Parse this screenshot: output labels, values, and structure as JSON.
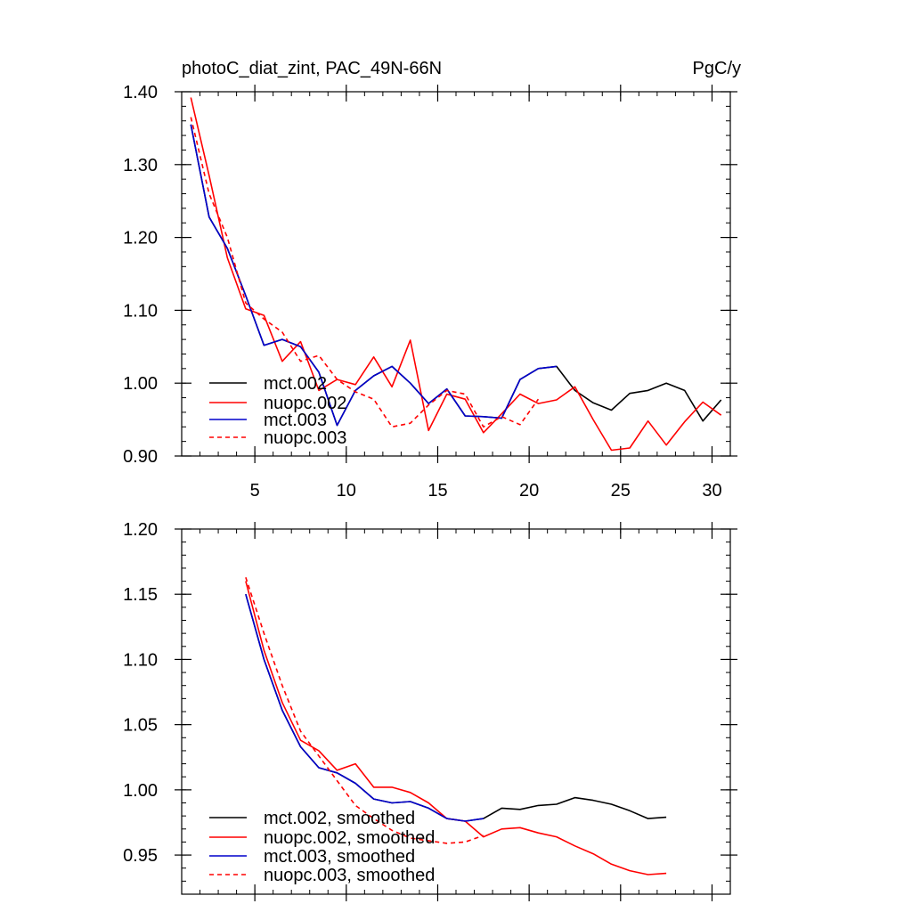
{
  "title_left": "photoC_diat_zint, PAC_49N-66N",
  "title_right": "PgC/y",
  "chart_data": [
    {
      "type": "line",
      "xlim": [
        1,
        31
      ],
      "ylim": [
        0.9,
        1.4
      ],
      "xticks": [
        5,
        10,
        15,
        20,
        25,
        30
      ],
      "xtick_labels": [
        "5",
        "10",
        "15",
        "20",
        "25",
        "30"
      ],
      "yticks": [
        0.9,
        1.0,
        1.1,
        1.2,
        1.3,
        1.4
      ],
      "ytick_labels": [
        "0.90",
        "1.00",
        "1.10",
        "1.20",
        "1.30",
        "1.40"
      ],
      "legend_position": "bottom-left",
      "series": [
        {
          "name": "mct.002",
          "color": "#000000",
          "dash": false,
          "x": [
            1.5,
            2.5,
            3.5,
            4.5,
            5.5,
            6.5,
            7.5,
            8.5,
            9.5,
            10.5,
            11.5,
            12.5,
            13.5,
            14.5,
            15.5,
            16.5,
            17.5,
            18.5,
            19.5,
            20.5,
            21.5,
            22.5,
            23.5,
            24.5,
            25.5,
            26.5,
            27.5,
            28.5,
            29.5,
            30.5
          ],
          "y": [
            1.355,
            1.228,
            1.185,
            1.12,
            1.052,
            1.06,
            1.05,
            1.015,
            0.942,
            0.99,
            1.01,
            1.023,
            1.0,
            0.972,
            0.992,
            0.955,
            0.954,
            0.952,
            1.005,
            1.02,
            1.023,
            0.99,
            0.973,
            0.963,
            0.986,
            0.99,
            1.0,
            0.99,
            0.948,
            0.977
          ]
        },
        {
          "name": "nuopc.002",
          "color": "#ff0000",
          "dash": false,
          "x": [
            1.5,
            2.5,
            3.5,
            4.5,
            5.5,
            6.5,
            7.5,
            8.5,
            9.5,
            10.5,
            11.5,
            12.5,
            13.5,
            14.5,
            15.5,
            16.5,
            17.5,
            18.5,
            19.5,
            20.5,
            21.5,
            22.5,
            23.5,
            24.5,
            25.5,
            26.5,
            27.5,
            28.5,
            29.5,
            30.5
          ],
          "y": [
            1.392,
            1.285,
            1.172,
            1.102,
            1.093,
            1.03,
            1.057,
            0.99,
            1.005,
            0.998,
            1.036,
            0.995,
            1.059,
            0.935,
            0.985,
            0.978,
            0.932,
            0.958,
            0.985,
            0.972,
            0.977,
            0.995,
            0.95,
            0.908,
            0.911,
            0.948,
            0.915,
            0.947,
            0.974,
            0.956
          ]
        },
        {
          "name": "mct.003",
          "color": "#0000cc",
          "dash": false,
          "x": [
            1.5,
            2.5,
            3.5,
            4.5,
            5.5,
            6.5,
            7.5,
            8.5,
            9.5,
            10.5,
            11.5,
            12.5,
            13.5,
            14.5,
            15.5,
            16.5,
            17.5,
            18.5,
            19.5,
            20.5,
            21.5
          ],
          "y": [
            1.355,
            1.228,
            1.185,
            1.12,
            1.052,
            1.06,
            1.05,
            1.015,
            0.942,
            0.99,
            1.01,
            1.023,
            1.0,
            0.972,
            0.992,
            0.955,
            0.954,
            0.952,
            1.005,
            1.02,
            1.023
          ]
        },
        {
          "name": "nuopc.003",
          "color": "#ff0000",
          "dash": true,
          "x": [
            1.5,
            2.5,
            3.5,
            4.5,
            5.5,
            6.5,
            7.5,
            8.5,
            9.5,
            10.5,
            11.5,
            12.5,
            13.5,
            14.5,
            15.5,
            16.5,
            17.5,
            18.5,
            19.5,
            20.5
          ],
          "y": [
            1.365,
            1.26,
            1.2,
            1.11,
            1.088,
            1.07,
            1.03,
            1.038,
            1.005,
            0.988,
            0.978,
            0.94,
            0.945,
            0.97,
            0.99,
            0.985,
            0.94,
            0.954,
            0.943,
            0.978
          ]
        }
      ]
    },
    {
      "type": "line",
      "xlim": [
        1,
        31
      ],
      "ylim": [
        0.92,
        1.2
      ],
      "xticks": [
        5,
        10,
        15,
        20,
        25,
        30
      ],
      "xtick_labels": [],
      "yticks": [
        0.95,
        1.0,
        1.05,
        1.1,
        1.15,
        1.2
      ],
      "ytick_labels": [
        "0.95",
        "1.00",
        "1.05",
        "1.10",
        "1.15",
        "1.20"
      ],
      "legend_position": "bottom-left",
      "series": [
        {
          "name": "mct.002, smoothed",
          "color": "#000000",
          "dash": false,
          "x": [
            4.5,
            5.5,
            6.5,
            7.5,
            8.5,
            9.5,
            10.5,
            11.5,
            12.5,
            13.5,
            14.5,
            15.5,
            16.5,
            17.5,
            18.5,
            19.5,
            20.5,
            21.5,
            22.5,
            23.5,
            24.5,
            25.5,
            26.5,
            27.5
          ],
          "y": [
            1.15,
            1.1,
            1.061,
            1.033,
            1.017,
            1.013,
            1.005,
            0.993,
            0.99,
            0.991,
            0.986,
            0.978,
            0.976,
            0.978,
            0.986,
            0.985,
            0.988,
            0.989,
            0.994,
            0.992,
            0.989,
            0.984,
            0.978,
            0.979
          ]
        },
        {
          "name": "nuopc.002, smoothed",
          "color": "#ff0000",
          "dash": false,
          "x": [
            4.5,
            5.5,
            6.5,
            7.5,
            8.5,
            9.5,
            10.5,
            11.5,
            12.5,
            13.5,
            14.5,
            15.5,
            16.5,
            17.5,
            18.5,
            19.5,
            20.5,
            21.5,
            22.5,
            23.5,
            24.5,
            25.5,
            26.5,
            27.5
          ],
          "y": [
            1.16,
            1.107,
            1.067,
            1.038,
            1.03,
            1.015,
            1.02,
            1.002,
            1.002,
            0.998,
            0.99,
            0.978,
            0.976,
            0.964,
            0.97,
            0.971,
            0.967,
            0.964,
            0.957,
            0.951,
            0.943,
            0.938,
            0.935,
            0.936
          ]
        },
        {
          "name": "mct.003, smoothed",
          "color": "#0000cc",
          "dash": false,
          "x": [
            4.5,
            5.5,
            6.5,
            7.5,
            8.5,
            9.5,
            10.5,
            11.5,
            12.5,
            13.5,
            14.5,
            15.5,
            16.5,
            17.5
          ],
          "y": [
            1.15,
            1.1,
            1.061,
            1.033,
            1.017,
            1.013,
            1.005,
            0.993,
            0.99,
            0.991,
            0.986,
            0.978,
            0.976,
            0.978
          ]
        },
        {
          "name": "nuopc.003, smoothed",
          "color": "#ff0000",
          "dash": true,
          "x": [
            4.5,
            5.5,
            6.5,
            7.5,
            8.5,
            9.5,
            10.5,
            11.5,
            12.5,
            13.5,
            14.5,
            15.5,
            16.5,
            17.5
          ],
          "y": [
            1.163,
            1.12,
            1.08,
            1.045,
            1.026,
            1.007,
            0.988,
            0.978,
            0.969,
            0.963,
            0.961,
            0.959,
            0.96,
            0.965
          ]
        }
      ]
    }
  ]
}
